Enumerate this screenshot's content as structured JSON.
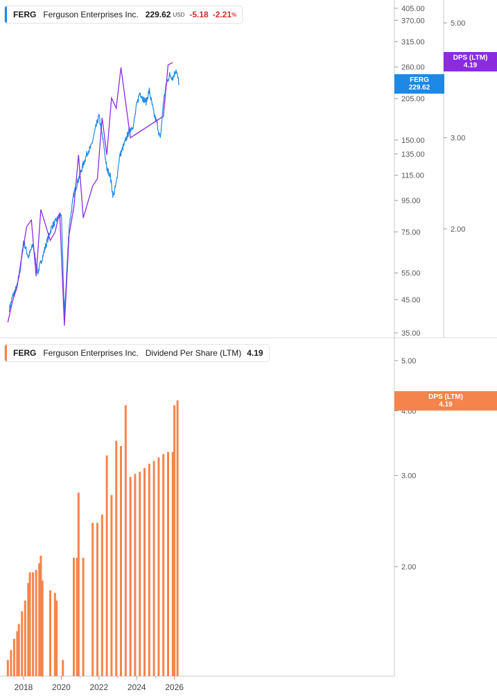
{
  "top_legend": {
    "ticker": "FERG",
    "company": "Ferguson Enterprises Inc.",
    "price": "229.62",
    "currency": "USD",
    "change": "-5.18",
    "change_pct": "-2.21",
    "pct_sign": "%"
  },
  "bottom_legend": {
    "ticker": "FERG",
    "company": "Ferguson Enterprises Inc.",
    "metric": "Dividend Per Share (LTM)",
    "value": "4.19"
  },
  "tags": {
    "price_tag": {
      "line1": "FERG",
      "line2": "229.62"
    },
    "dps_tag_top": {
      "line1": "DPS (LTM)",
      "line2": "4.19"
    },
    "dps_tag_bottom": {
      "line1": "DPS (LTM)",
      "line2": "4.19"
    }
  },
  "colors": {
    "price_line": "#1e88e5",
    "dps_line": "#8a2be2",
    "dps_bars": "#f5844c",
    "negative": "#d92b2b",
    "axis": "#888888"
  },
  "chart_data": [
    {
      "type": "line",
      "scale": "log",
      "series": [
        {
          "name": "FERG",
          "points": [
            [
              "2017-04",
              42
            ],
            [
              "2017-06",
              46
            ],
            [
              "2017-09",
              50
            ],
            [
              "2017-11",
              57
            ],
            [
              "2018-01",
              70
            ],
            [
              "2018-04",
              62
            ],
            [
              "2018-07",
              68
            ],
            [
              "2018-10",
              55
            ],
            [
              "2019-01",
              62
            ],
            [
              "2019-04",
              70
            ],
            [
              "2019-07",
              78
            ],
            [
              "2019-10",
              82
            ],
            [
              "2020-01",
              86
            ],
            [
              "2020-03",
              40
            ],
            [
              "2020-06",
              78
            ],
            [
              "2020-09",
              100
            ],
            [
              "2020-12",
              112
            ],
            [
              "2021-03",
              125
            ],
            [
              "2021-06",
              138
            ],
            [
              "2021-08",
              142
            ],
            [
              "2021-11",
              165
            ],
            [
              "2022-01",
              180
            ],
            [
              "2022-04",
              145
            ],
            [
              "2022-06",
              120
            ],
            [
              "2022-08",
              116
            ],
            [
              "2022-10",
              98
            ],
            [
              "2022-12",
              108
            ],
            [
              "2023-02",
              132
            ],
            [
              "2023-05",
              145
            ],
            [
              "2023-08",
              160
            ],
            [
              "2023-11",
              168
            ],
            [
              "2024-01",
              195
            ],
            [
              "2024-03",
              215
            ],
            [
              "2024-05",
              205
            ],
            [
              "2024-07",
              200
            ],
            [
              "2024-09",
              218
            ],
            [
              "2024-12",
              182
            ],
            [
              "2025-02",
              170
            ],
            [
              "2025-04",
              150
            ],
            [
              "2025-06",
              200
            ],
            [
              "2025-08",
              230
            ],
            [
              "2025-10",
              245
            ],
            [
              "2025-12",
              240
            ],
            [
              "2026-02",
              255
            ],
            [
              "2026-04",
              229.62
            ]
          ]
        },
        {
          "name": "DPS (LTM)",
          "axis": "right",
          "points": [
            [
              "2017-03",
              1.32
            ],
            [
              "2017-06",
              1.45
            ],
            [
              "2017-09",
              1.55
            ],
            [
              "2017-12",
              1.78
            ],
            [
              "2018-03",
              2.02
            ],
            [
              "2018-06",
              2.08
            ],
            [
              "2018-09",
              1.62
            ],
            [
              "2018-12",
              2.18
            ],
            [
              "2019-06",
              1.9
            ],
            [
              "2019-09",
              1.97
            ],
            [
              "2019-12",
              2.15
            ],
            [
              "2020-03",
              1.3
            ],
            [
              "2020-06",
              1.95
            ],
            [
              "2020-09",
              2.2
            ],
            [
              "2020-12",
              2.78
            ],
            [
              "2021-03",
              2.1
            ],
            [
              "2021-09",
              2.42
            ],
            [
              "2021-12",
              2.5
            ],
            [
              "2022-03",
              3.28
            ],
            [
              "2022-06",
              2.78
            ],
            [
              "2022-09",
              3.58
            ],
            [
              "2022-12",
              3.42
            ],
            [
              "2023-03",
              4.1
            ],
            [
              "2023-09",
              3.0
            ],
            [
              "2025-06",
              3.3
            ],
            [
              "2025-09",
              4.15
            ],
            [
              "2025-12",
              4.19
            ]
          ]
        }
      ],
      "y_ticks": [
        405,
        370,
        315,
        260,
        205,
        150,
        135,
        115,
        95,
        75,
        55,
        45,
        35
      ],
      "y_right_ticks": [
        5.0,
        3.0,
        2.0
      ],
      "ylim": [
        35,
        420
      ]
    },
    {
      "type": "bar",
      "scale": "log",
      "series": [
        {
          "name": "Dividend Per Share (LTM)",
          "bars": [
            [
              "2017-03",
              1.32
            ],
            [
              "2017-05",
              1.38
            ],
            [
              "2017-07",
              1.45
            ],
            [
              "2017-09",
              1.5
            ],
            [
              "2017-10",
              1.55
            ],
            [
              "2017-12",
              1.64
            ],
            [
              "2018-02",
              1.72
            ],
            [
              "2018-04",
              1.86
            ],
            [
              "2018-05",
              1.95
            ],
            [
              "2018-07",
              1.95
            ],
            [
              "2018-09",
              1.97
            ],
            [
              "2018-11",
              2.03
            ],
            [
              "2018-12",
              2.1
            ],
            [
              "2019-01",
              1.88
            ],
            [
              "2019-06",
              1.8
            ],
            [
              "2019-09",
              1.78
            ],
            [
              "2019-10",
              1.72
            ],
            [
              "2020-02",
              1.32
            ],
            [
              "2020-09",
              2.08
            ],
            [
              "2020-11",
              2.08
            ],
            [
              "2020-12",
              2.78
            ],
            [
              "2021-03",
              2.08
            ],
            [
              "2021-09",
              2.43
            ],
            [
              "2021-12",
              2.43
            ],
            [
              "2022-03",
              2.52
            ],
            [
              "2022-06",
              3.28
            ],
            [
              "2022-09",
              2.75
            ],
            [
              "2022-12",
              3.5
            ],
            [
              "2023-03",
              3.42
            ],
            [
              "2023-06",
              4.1
            ],
            [
              "2023-09",
              2.98
            ],
            [
              "2023-12",
              3.02
            ],
            [
              "2024-03",
              3.05
            ],
            [
              "2024-06",
              3.1
            ],
            [
              "2024-09",
              3.16
            ],
            [
              "2024-12",
              3.2
            ],
            [
              "2025-03",
              3.25
            ],
            [
              "2025-06",
              3.3
            ],
            [
              "2025-09",
              3.33
            ],
            [
              "2025-12",
              3.33
            ],
            [
              "2026-01",
              4.1
            ],
            [
              "2026-03",
              4.19
            ]
          ]
        }
      ],
      "y_ticks": [
        5.0,
        4.0,
        3.0,
        2.0
      ],
      "ylim": [
        1.1,
        5.3
      ]
    }
  ],
  "x_axis": {
    "ticks": [
      "2018",
      "2020",
      "2022",
      "2024",
      "2026"
    ]
  }
}
